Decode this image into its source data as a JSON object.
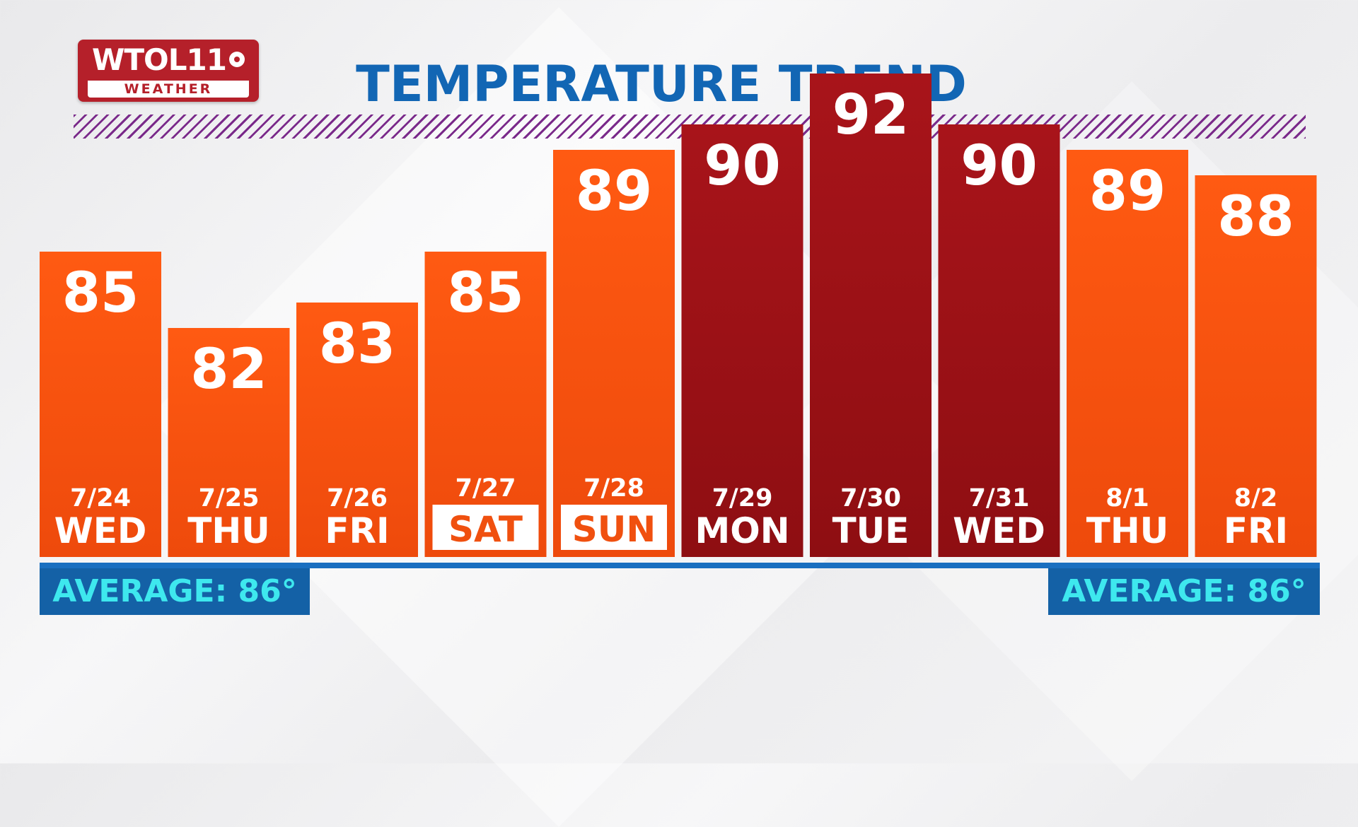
{
  "logo": {
    "brand": "WTOL11",
    "sub": "WEATHER"
  },
  "average_label": "AVERAGE: 86°",
  "colors": {
    "title": "#1266b4",
    "bar_orange": "#f0500f",
    "bar_dark_red": "#a01216",
    "baseline": "#1a6fc0",
    "average_bg": "#1461a6",
    "average_text": "#3ee8ee",
    "hatch": "#7a2a8a"
  },
  "chart_data": {
    "type": "bar",
    "title": "TEMPERATURE TREND",
    "categories": [
      "WED",
      "THU",
      "FRI",
      "SAT",
      "SUN",
      "MON",
      "TUE",
      "WED",
      "THU",
      "FRI"
    ],
    "dates": [
      "7/24",
      "7/25",
      "7/26",
      "7/27",
      "7/28",
      "7/29",
      "7/30",
      "7/31",
      "8/1",
      "8/2"
    ],
    "values": [
      85,
      82,
      83,
      85,
      89,
      90,
      92,
      90,
      89,
      88
    ],
    "weekend": [
      false,
      false,
      false,
      true,
      true,
      false,
      false,
      false,
      false,
      false
    ],
    "hot": [
      false,
      false,
      false,
      false,
      false,
      true,
      true,
      true,
      false,
      false
    ],
    "reference_line": {
      "label": "AVERAGE: 86°",
      "value": 86
    },
    "ylim": [
      73,
      94
    ],
    "grid": false,
    "legend": "none"
  }
}
